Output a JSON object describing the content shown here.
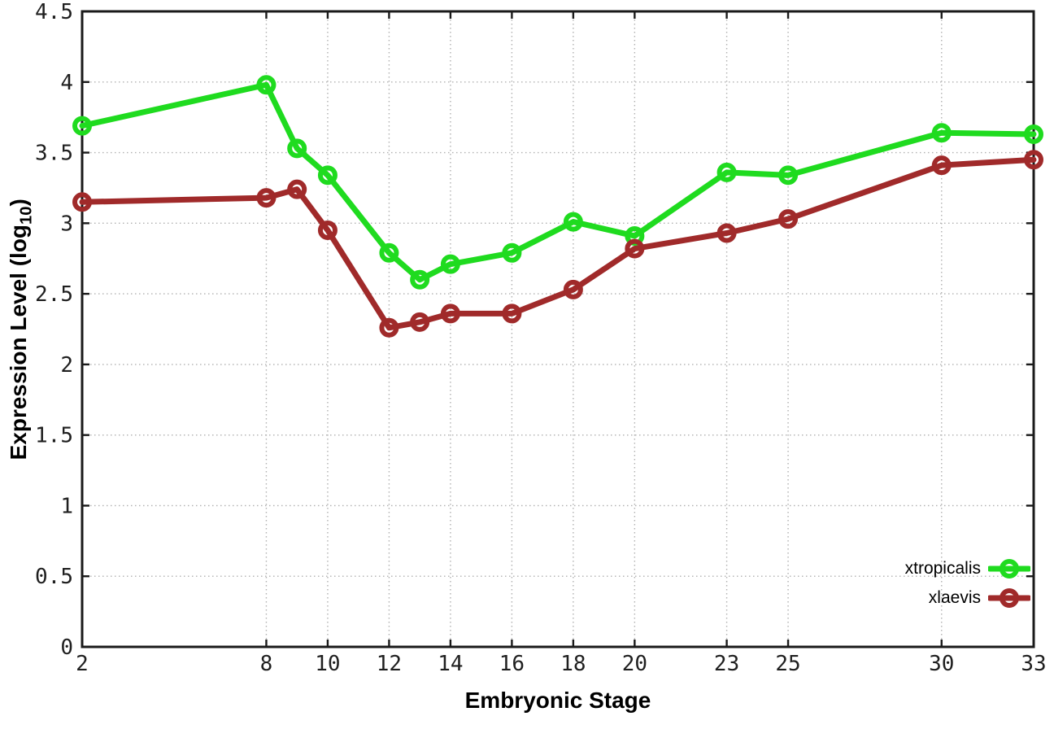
{
  "chart_data": {
    "type": "line",
    "title": "",
    "xlabel": "Embryonic Stage",
    "ylabel": {
      "text": "Expression Level (log",
      "subscript": "10",
      "suffix": ")"
    },
    "xlim": [
      2,
      33
    ],
    "ylim": [
      0,
      4.5
    ],
    "grid": true,
    "legend_position": "inside bottom-right",
    "x": [
      2,
      8,
      9,
      10,
      12,
      13,
      14,
      16,
      18,
      20,
      23,
      25,
      30,
      33
    ],
    "xticks": {
      "values": [
        2,
        8,
        10,
        12,
        14,
        16,
        18,
        20,
        23,
        25,
        30,
        33
      ],
      "labels": [
        "2",
        "8",
        "10",
        "12",
        "14",
        "16",
        "18",
        "20",
        "23",
        "25",
        "30",
        "33"
      ]
    },
    "yticks": {
      "values": [
        0,
        0.5,
        1,
        1.5,
        2,
        2.5,
        3,
        3.5,
        4,
        4.5
      ],
      "labels": [
        "0",
        "0.5",
        "1",
        "1.5",
        "2",
        "2.5",
        "3",
        "3.5",
        "4",
        "4.5"
      ]
    },
    "series": [
      {
        "name": "xtropicalis",
        "color": "#1fdb1f",
        "marker": "open-circle",
        "values": [
          3.69,
          3.98,
          3.53,
          3.34,
          2.79,
          2.6,
          2.71,
          2.79,
          3.01,
          2.91,
          3.36,
          3.34,
          3.64,
          3.63
        ]
      },
      {
        "name": "xlaevis",
        "color": "#a02a2a",
        "marker": "open-circle",
        "values": [
          3.15,
          3.18,
          3.24,
          2.95,
          2.26,
          2.3,
          2.36,
          2.36,
          2.53,
          2.82,
          2.93,
          3.03,
          3.41,
          3.45
        ]
      }
    ],
    "axis_color": "#1a1a1a",
    "grid_color": "#b0b0b0",
    "tick_label_color": "#1f1f1f"
  }
}
